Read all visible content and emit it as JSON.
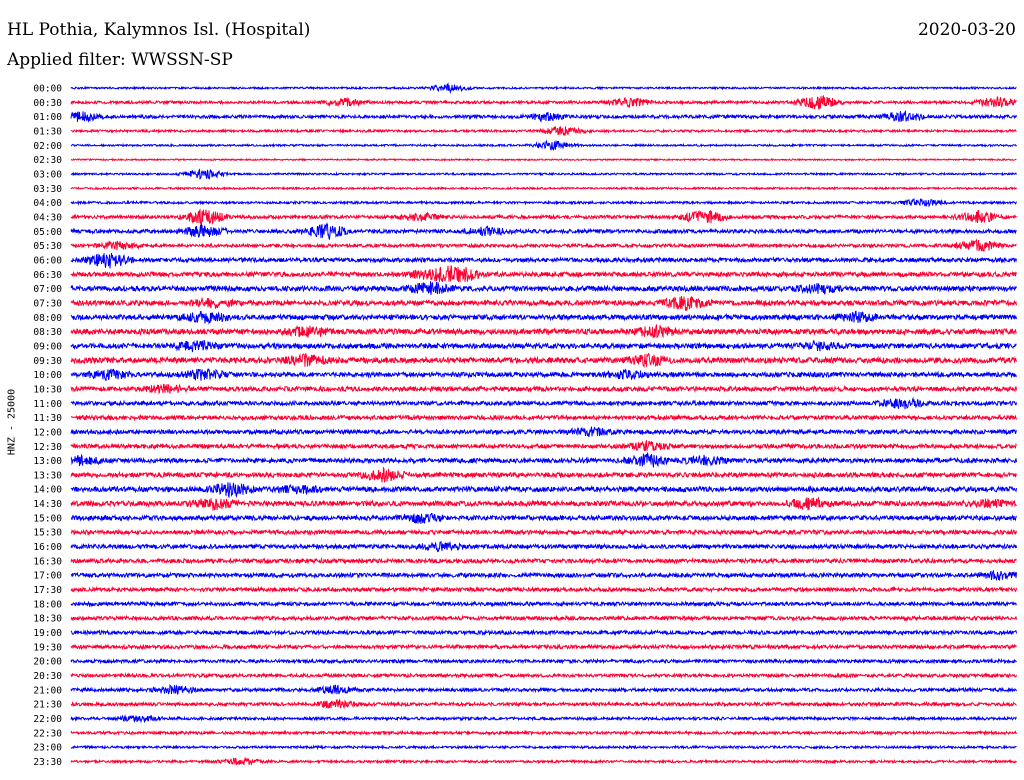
{
  "header": {
    "station": "HL Pothia, Kalymnos Isl. (Hospital)",
    "date": "2020-03-20",
    "filter": "Applied filter: WWSSN-SP"
  },
  "chart_data": {
    "type": "line",
    "title": "HL Pothia, Kalymnos Isl. (Hospital)",
    "subtitle": "Applied filter: WWSSN-SP",
    "ylabel": "HNZ - 25000",
    "trace_colors": [
      "#0000ff",
      "#ff0033"
    ],
    "rows": [
      {
        "label": "00:00",
        "color": "#0000ff",
        "amplitude": 0.2,
        "events": [
          [
            0.4,
            0.8
          ]
        ]
      },
      {
        "label": "00:30",
        "color": "#ff0033",
        "amplitude": 0.3,
        "events": [
          [
            0.29,
            0.8
          ],
          [
            0.59,
            0.9
          ],
          [
            0.79,
            1.4
          ],
          [
            0.98,
            1.0
          ]
        ]
      },
      {
        "label": "01:00",
        "color": "#0000ff",
        "amplitude": 0.35,
        "events": [
          [
            0.01,
            1.0
          ],
          [
            0.5,
            0.8
          ],
          [
            0.88,
            1.0
          ]
        ]
      },
      {
        "label": "01:30",
        "color": "#ff0033",
        "amplitude": 0.25,
        "events": [
          [
            0.52,
            1.0
          ]
        ]
      },
      {
        "label": "02:00",
        "color": "#0000ff",
        "amplitude": 0.2,
        "events": [
          [
            0.51,
            1.0
          ]
        ]
      },
      {
        "label": "02:30",
        "color": "#ff0033",
        "amplitude": 0.15,
        "events": []
      },
      {
        "label": "03:00",
        "color": "#0000ff",
        "amplitude": 0.2,
        "events": [
          [
            0.14,
            1.0
          ]
        ]
      },
      {
        "label": "03:30",
        "color": "#ff0033",
        "amplitude": 0.2,
        "events": []
      },
      {
        "label": "04:00",
        "color": "#0000ff",
        "amplitude": 0.25,
        "events": [
          [
            0.9,
            0.7
          ]
        ]
      },
      {
        "label": "04:30",
        "color": "#ff0033",
        "amplitude": 0.35,
        "events": [
          [
            0.14,
            1.6
          ],
          [
            0.37,
            0.7
          ],
          [
            0.67,
            1.4
          ],
          [
            0.96,
            1.2
          ]
        ]
      },
      {
        "label": "05:00",
        "color": "#0000ff",
        "amplitude": 0.4,
        "events": [
          [
            0.14,
            1.2
          ],
          [
            0.27,
            1.5
          ],
          [
            0.44,
            0.8
          ]
        ]
      },
      {
        "label": "05:30",
        "color": "#ff0033",
        "amplitude": 0.35,
        "events": [
          [
            0.05,
            0.7
          ],
          [
            0.96,
            1.2
          ]
        ]
      },
      {
        "label": "06:00",
        "color": "#0000ff",
        "amplitude": 0.45,
        "events": [
          [
            0.04,
            1.5
          ]
        ]
      },
      {
        "label": "06:30",
        "color": "#ff0033",
        "amplitude": 0.5,
        "events": [
          [
            0.38,
            1.0
          ],
          [
            0.41,
            1.7
          ]
        ]
      },
      {
        "label": "07:00",
        "color": "#0000ff",
        "amplitude": 0.55,
        "events": [
          [
            0.38,
            1.2
          ],
          [
            0.79,
            0.8
          ]
        ]
      },
      {
        "label": "07:30",
        "color": "#ff0033",
        "amplitude": 0.55,
        "events": [
          [
            0.15,
            0.8
          ],
          [
            0.65,
            1.3
          ]
        ]
      },
      {
        "label": "08:00",
        "color": "#0000ff",
        "amplitude": 0.55,
        "events": [
          [
            0.14,
            1.0
          ],
          [
            0.83,
            0.8
          ]
        ]
      },
      {
        "label": "08:30",
        "color": "#ff0033",
        "amplitude": 0.6,
        "events": [
          [
            0.25,
            0.8
          ],
          [
            0.62,
            1.0
          ]
        ]
      },
      {
        "label": "09:00",
        "color": "#0000ff",
        "amplitude": 0.55,
        "events": [
          [
            0.13,
            1.0
          ],
          [
            0.79,
            0.7
          ]
        ]
      },
      {
        "label": "09:30",
        "color": "#ff0033",
        "amplitude": 0.6,
        "events": [
          [
            0.25,
            1.0
          ],
          [
            0.61,
            1.0
          ]
        ]
      },
      {
        "label": "10:00",
        "color": "#0000ff",
        "amplitude": 0.5,
        "events": [
          [
            0.04,
            0.9
          ],
          [
            0.14,
            1.0
          ],
          [
            0.59,
            0.8
          ]
        ]
      },
      {
        "label": "10:30",
        "color": "#ff0033",
        "amplitude": 0.5,
        "events": [
          [
            0.1,
            0.7
          ]
        ]
      },
      {
        "label": "11:00",
        "color": "#0000ff",
        "amplitude": 0.45,
        "events": [
          [
            0.88,
            1.0
          ]
        ]
      },
      {
        "label": "11:30",
        "color": "#ff0033",
        "amplitude": 0.45,
        "events": []
      },
      {
        "label": "12:00",
        "color": "#0000ff",
        "amplitude": 0.45,
        "events": [
          [
            0.55,
            0.8
          ]
        ]
      },
      {
        "label": "12:30",
        "color": "#ff0033",
        "amplitude": 0.45,
        "events": [
          [
            0.61,
            0.8
          ]
        ]
      },
      {
        "label": "13:00",
        "color": "#0000ff",
        "amplitude": 0.5,
        "events": [
          [
            0.01,
            0.8
          ],
          [
            0.61,
            1.3
          ],
          [
            0.67,
            0.8
          ]
        ]
      },
      {
        "label": "13:30",
        "color": "#ff0033",
        "amplitude": 0.5,
        "events": [
          [
            0.33,
            1.2
          ]
        ]
      },
      {
        "label": "14:00",
        "color": "#0000ff",
        "amplitude": 0.55,
        "events": [
          [
            0.17,
            1.3
          ],
          [
            0.24,
            0.7
          ]
        ]
      },
      {
        "label": "14:30",
        "color": "#ff0033",
        "amplitude": 0.55,
        "events": [
          [
            0.15,
            1.1
          ],
          [
            0.78,
            1.1
          ],
          [
            0.97,
            0.6
          ]
        ]
      },
      {
        "label": "15:00",
        "color": "#0000ff",
        "amplitude": 0.5,
        "events": [
          [
            0.37,
            0.9
          ]
        ]
      },
      {
        "label": "15:30",
        "color": "#ff0033",
        "amplitude": 0.45,
        "events": []
      },
      {
        "label": "16:00",
        "color": "#0000ff",
        "amplitude": 0.45,
        "events": [
          [
            0.39,
            0.7
          ]
        ]
      },
      {
        "label": "16:30",
        "color": "#ff0033",
        "amplitude": 0.45,
        "events": []
      },
      {
        "label": "17:00",
        "color": "#0000ff",
        "amplitude": 0.45,
        "events": [
          [
            0.98,
            0.8
          ]
        ]
      },
      {
        "label": "17:30",
        "color": "#ff0033",
        "amplitude": 0.4,
        "events": []
      },
      {
        "label": "18:00",
        "color": "#0000ff",
        "amplitude": 0.4,
        "events": []
      },
      {
        "label": "18:30",
        "color": "#ff0033",
        "amplitude": 0.4,
        "events": []
      },
      {
        "label": "19:00",
        "color": "#0000ff",
        "amplitude": 0.4,
        "events": []
      },
      {
        "label": "19:30",
        "color": "#ff0033",
        "amplitude": 0.4,
        "events": []
      },
      {
        "label": "20:00",
        "color": "#0000ff",
        "amplitude": 0.35,
        "events": []
      },
      {
        "label": "20:30",
        "color": "#ff0033",
        "amplitude": 0.35,
        "events": []
      },
      {
        "label": "21:00",
        "color": "#0000ff",
        "amplitude": 0.35,
        "events": [
          [
            0.11,
            0.8
          ],
          [
            0.28,
            0.8
          ]
        ]
      },
      {
        "label": "21:30",
        "color": "#ff0033",
        "amplitude": 0.35,
        "events": [
          [
            0.28,
            0.7
          ]
        ]
      },
      {
        "label": "22:00",
        "color": "#0000ff",
        "amplitude": 0.3,
        "events": [
          [
            0.07,
            0.6
          ]
        ]
      },
      {
        "label": "22:30",
        "color": "#ff0033",
        "amplitude": 0.3,
        "events": []
      },
      {
        "label": "23:00",
        "color": "#0000ff",
        "amplitude": 0.25,
        "events": []
      },
      {
        "label": "23:30",
        "color": "#ff0033",
        "amplitude": 0.25,
        "events": [
          [
            0.18,
            0.6
          ]
        ]
      }
    ]
  }
}
